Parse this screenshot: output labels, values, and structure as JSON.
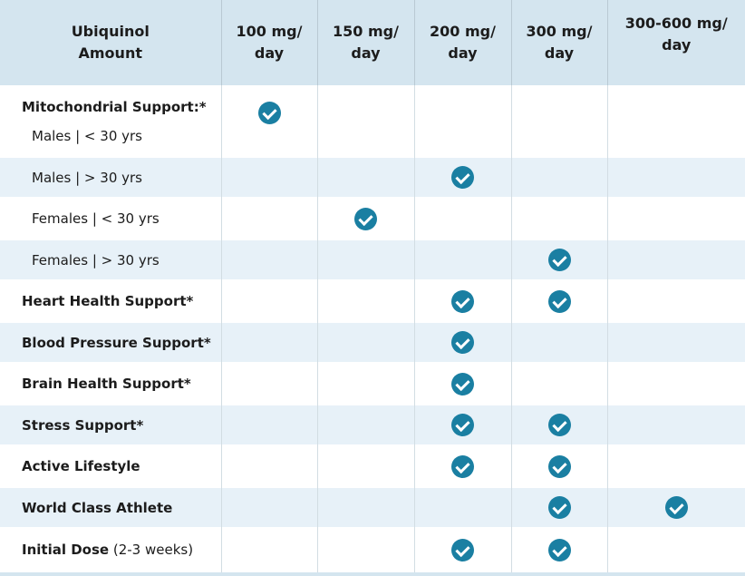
{
  "header": {
    "label_line1": "Ubiquinol",
    "label_line2": "Amount",
    "columns": [
      {
        "line1": "100 mg/",
        "line2": "day"
      },
      {
        "line1": "150 mg/",
        "line2": "day"
      },
      {
        "line1": "200 mg/",
        "line2": "day"
      },
      {
        "line1": "300 mg/",
        "line2": "day"
      },
      {
        "line1": "300-600 mg/",
        "line2": "day"
      }
    ]
  },
  "rows": [
    {
      "label": "Mitochondrial Support:*",
      "sublabel": "Males | < 30 yrs",
      "checks": [
        true,
        false,
        false,
        false,
        false
      ]
    },
    {
      "label": "Males | > 30 yrs",
      "checks": [
        false,
        false,
        true,
        false,
        false
      ]
    },
    {
      "label": "Females | < 30 yrs",
      "checks": [
        false,
        true,
        false,
        false,
        false
      ]
    },
    {
      "label": "Females | > 30 yrs",
      "checks": [
        false,
        false,
        false,
        true,
        false
      ]
    },
    {
      "label": "Heart Health Support*",
      "checks": [
        false,
        false,
        true,
        true,
        false
      ]
    },
    {
      "label": "Blood Pressure Support*",
      "checks": [
        false,
        false,
        true,
        false,
        false
      ]
    },
    {
      "label": "Brain Health Support*",
      "checks": [
        false,
        false,
        true,
        false,
        false
      ]
    },
    {
      "label": "Stress Support*",
      "checks": [
        false,
        false,
        true,
        true,
        false
      ]
    },
    {
      "label": "Active Lifestyle",
      "checks": [
        false,
        false,
        true,
        true,
        false
      ]
    },
    {
      "label": "World Class Athlete",
      "checks": [
        false,
        false,
        false,
        true,
        true
      ]
    },
    {
      "label": "Initial Dose",
      "note": "(2-3 weeks)",
      "checks": [
        false,
        false,
        true,
        true,
        false
      ]
    }
  ],
  "icon": "check-circle-icon",
  "colors": {
    "header_bg": "#d4e5ef",
    "row_alt_bg": "#e7f1f8",
    "check": "#1a7fa2"
  }
}
